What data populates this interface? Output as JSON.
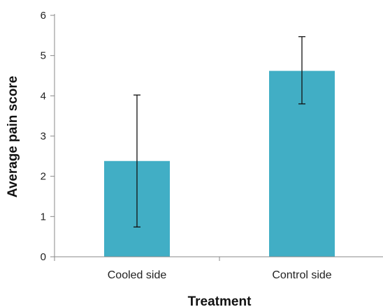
{
  "chart_data": {
    "type": "bar",
    "title": "",
    "xlabel": "Treatment",
    "ylabel": "Average pain score",
    "categories": [
      "Cooled side",
      "Control side"
    ],
    "values": [
      2.38,
      4.62
    ],
    "error_low": [
      0.74,
      3.8
    ],
    "error_high": [
      4.02,
      5.47
    ],
    "ylim": [
      0,
      6
    ],
    "yticks": [
      0,
      1,
      2,
      3,
      4,
      5,
      6
    ],
    "bar_color": "#41aec5",
    "grid": false,
    "legend": "none"
  }
}
